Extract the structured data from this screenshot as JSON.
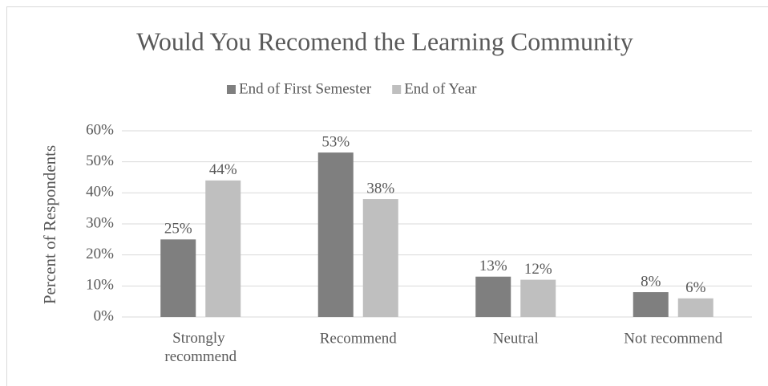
{
  "chart_data": {
    "type": "bar",
    "title": "Would You Recomend the Learning Community",
    "y_label": "Percent of Respondents",
    "categories": [
      "Strongly recommend",
      "Recommend",
      "Neutral",
      "Not recommend"
    ],
    "series": [
      {
        "name": "End of First Semester",
        "color": "#7f7f7f",
        "values": [
          25,
          53,
          13,
          8
        ],
        "value_labels": [
          "25%",
          "53%",
          "13%",
          "8%"
        ]
      },
      {
        "name": "End of Year",
        "color": "#bfbfbf",
        "values": [
          44,
          38,
          12,
          6
        ],
        "value_labels": [
          "44%",
          "38%",
          "12%",
          "6%"
        ]
      }
    ],
    "ylim": [
      0,
      60
    ],
    "yticks": [
      {
        "value": 0,
        "label": "0%"
      },
      {
        "value": 10,
        "label": "10%"
      },
      {
        "value": 20,
        "label": "20%"
      },
      {
        "value": 30,
        "label": "30%"
      },
      {
        "value": 40,
        "label": "40%"
      },
      {
        "value": 50,
        "label": "50%"
      },
      {
        "value": 60,
        "label": "60%"
      }
    ],
    "grid": true,
    "legend": "top"
  }
}
